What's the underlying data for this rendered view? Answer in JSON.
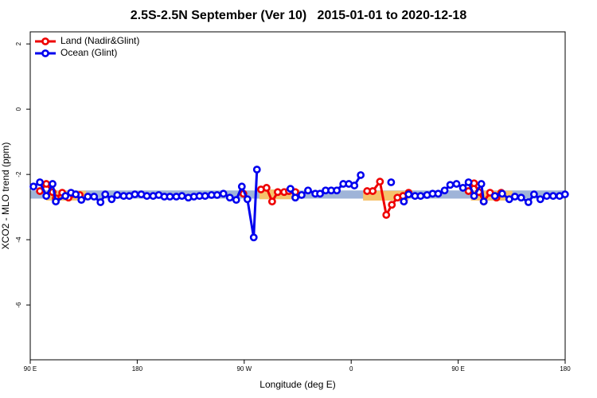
{
  "chart_data": {
    "type": "line",
    "title": "2.5S-2.5N September (Ver 10)   2015-01-01 to 2020-12-18",
    "x_label": "Longitude (deg E)",
    "y_label": "XCO2 - MLO trend (ppm)",
    "xlim": [
      90,
      540
    ],
    "xticks": [
      {
        "value": 90,
        "label": "90 E"
      },
      180,
      {
        "value": 270,
        "label": "90 W"
      },
      {
        "value": 360,
        "label": "0"
      },
      {
        "value": 450,
        "label": "90 E"
      },
      {
        "value": 540,
        "label": "180"
      }
    ],
    "ylim": [
      -7.68,
      2.37
    ],
    "yticks": [
      2,
      0,
      -2,
      -4,
      -6
    ],
    "legend": "top-left",
    "bands": [
      {
        "color": "#9fb4d8",
        "x": [
          90,
          540
        ],
        "y": [
          -2.74,
          -2.49
        ]
      },
      {
        "color": "#f5c26b",
        "x": [
          103.5,
          137.0
        ],
        "y": [
          -2.8,
          -2.5
        ]
      },
      {
        "color": "#f5c26b",
        "x": [
          282.7,
          316.3
        ],
        "y": [
          -2.76,
          -2.46
        ]
      },
      {
        "color": "#f5c26b",
        "x": [
          370.0,
          408.3
        ],
        "y": [
          -2.8,
          -2.5
        ]
      },
      {
        "color": "#f5c26b",
        "x": [
          460.7,
          495.6
        ],
        "y": [
          -2.8,
          -2.5
        ]
      }
    ],
    "series": [
      {
        "name": "Land (Nadir&Glint)",
        "color": "#ee0000",
        "x": [
          98.1,
          103.5,
          108.8,
          111.5,
          116.9,
          122.2,
          131.6,
          null,
          269.3,
          null,
          284.1,
          288.8,
          293.5,
          298.2,
          303.6,
          307.6,
          313.0,
          null,
          373.4,
          378.1,
          384.2,
          389.5,
          394.2,
          398.9,
          403.6,
          408.3,
          null,
          458.7,
          463.4,
          467.4,
          471.5,
          476.8,
          482.2,
          486.2
        ],
        "values": [
          -2.51,
          -2.29,
          -2.54,
          -2.73,
          -2.56,
          -2.71,
          -2.63,
          null,
          -2.59,
          null,
          -2.46,
          -2.41,
          -2.83,
          -2.54,
          -2.54,
          -2.51,
          -2.54,
          null,
          -2.51,
          -2.51,
          -2.22,
          -3.24,
          -2.93,
          -2.71,
          -2.66,
          -2.56,
          null,
          -2.51,
          -2.27,
          -2.54,
          -2.83,
          -2.56,
          -2.71,
          -2.56
        ]
      },
      {
        "name": "Ocean (Glint)",
        "color": "#0000ee",
        "x": [
          92.7,
          98.1,
          103.5,
          108.8,
          111.5,
          119.6,
          124.3,
          128.3,
          133.0,
          138.4,
          143.7,
          149.1,
          153.1,
          158.5,
          163.2,
          168.6,
          173.3,
          178.0,
          183.4,
          188.1,
          193.4,
          198.1,
          202.8,
          207.5,
          212.9,
          217.6,
          223.0,
          227.7,
          232.4,
          237.1,
          242.5,
          247.2,
          252.5,
          257.9,
          263.3,
          268.0,
          272.7,
          278.0,
          280.7,
          null,
          308.9,
          313.0,
          318.3,
          323.7,
          329.8,
          333.8,
          338.5,
          343.2,
          347.9,
          353.3,
          358.0,
          362.7,
          368.0,
          null,
          393.6,
          null,
          404.3,
          408.3,
          413.7,
          418.4,
          423.8,
          428.5,
          433.2,
          438.6,
          443.3,
          448.6,
          454.0,
          458.7,
          463.4,
          469.5,
          471.5,
          null,
          480.9,
          487.0,
          493.0,
          497.7,
          503.0,
          509.1,
          513.8,
          519.1,
          524.5,
          529.9,
          535.3,
          539.9
        ],
        "values": [
          -2.37,
          -2.24,
          -2.66,
          -2.29,
          -2.83,
          -2.66,
          -2.56,
          -2.61,
          -2.78,
          -2.68,
          -2.68,
          -2.85,
          -2.61,
          -2.76,
          -2.63,
          -2.66,
          -2.66,
          -2.61,
          -2.61,
          -2.66,
          -2.66,
          -2.63,
          -2.68,
          -2.68,
          -2.68,
          -2.66,
          -2.71,
          -2.68,
          -2.66,
          -2.66,
          -2.63,
          -2.63,
          -2.59,
          -2.71,
          -2.78,
          -2.37,
          -2.76,
          -3.93,
          -1.85,
          null,
          -2.44,
          -2.71,
          -2.63,
          -2.49,
          -2.59,
          -2.59,
          -2.49,
          -2.49,
          -2.49,
          -2.29,
          -2.29,
          -2.34,
          -2.02,
          null,
          -2.24,
          null,
          -2.83,
          -2.61,
          -2.66,
          -2.66,
          -2.63,
          -2.59,
          -2.59,
          -2.49,
          -2.32,
          -2.29,
          -2.41,
          -2.24,
          -2.66,
          -2.29,
          -2.83,
          null,
          -2.66,
          -2.59,
          -2.76,
          -2.68,
          -2.71,
          -2.85,
          -2.61,
          -2.76,
          -2.66,
          -2.66,
          -2.66,
          -2.61
        ]
      }
    ]
  }
}
